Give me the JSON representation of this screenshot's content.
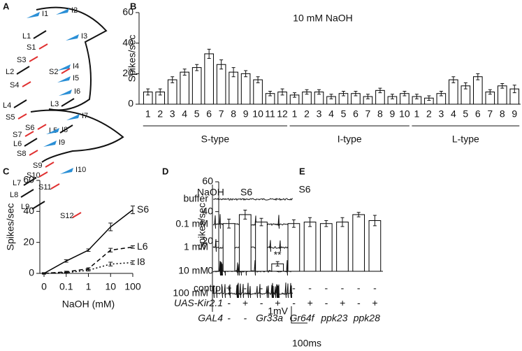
{
  "panel_labels": [
    "A",
    "B",
    "C",
    "D",
    "E"
  ],
  "diagram_a": {
    "labels": [
      "L1",
      "I1",
      "I2",
      "S1",
      "I3",
      "S3",
      "L2",
      "S2",
      "I4",
      "S4",
      "I5",
      "I6",
      "L4",
      "L3",
      "S5",
      "S6",
      "I7",
      "S7",
      "L5",
      "I8",
      "L6",
      "I9",
      "S8",
      "S9",
      "S10",
      "I10",
      "L7",
      "S11",
      "L8",
      "L9",
      "S12"
    ]
  },
  "traces_d": {
    "stimulus": "NaOH",
    "sensillum": "S6",
    "concentrations": [
      "buffer",
      "0.1 mM",
      "1 mM",
      "10 mM",
      "100 mM"
    ],
    "scale_voltage": "1mV",
    "scale_time": "100ms"
  },
  "chart_data": [
    {
      "type": "bar",
      "title": "10 mM NaOH",
      "y_label": "Spikes/sec",
      "ylim": [
        0,
        60
      ],
      "yticks": [
        0,
        20,
        40,
        60
      ],
      "bar_color": "#ffffff",
      "edge_color": "#000000",
      "groups": [
        {
          "name": "S-type",
          "categories": [
            "1",
            "2",
            "3",
            "4",
            "5",
            "6",
            "7",
            "8",
            "9",
            "10",
            "11",
            "12"
          ],
          "values": [
            8,
            8,
            16,
            21,
            24,
            33,
            26,
            21,
            20,
            16,
            7,
            8
          ],
          "errors": [
            2,
            2,
            2,
            2,
            2,
            3,
            3,
            3,
            2,
            2,
            1.5,
            2
          ]
        },
        {
          "name": "I-type",
          "categories": [
            "1",
            "2",
            "3",
            "4",
            "5",
            "6",
            "7",
            "8",
            "9",
            "10"
          ],
          "values": [
            6,
            8,
            8,
            5,
            7,
            7,
            5,
            9,
            5,
            7
          ],
          "errors": [
            1.5,
            1.5,
            1.5,
            1.5,
            1.5,
            1.5,
            1.5,
            1.5,
            1.5,
            1.5
          ]
        },
        {
          "name": "L-type",
          "categories": [
            "1",
            "2",
            "3",
            "4",
            "5",
            "6",
            "7",
            "8",
            "9"
          ],
          "values": [
            5,
            4,
            7,
            16,
            12,
            18,
            8,
            12,
            10
          ],
          "errors": [
            1.5,
            1.5,
            1.5,
            2,
            2,
            2,
            1.5,
            1.5,
            2.5
          ]
        }
      ]
    },
    {
      "type": "line",
      "y_label": "Spikes/sec",
      "x_label": "NaOH (mM)",
      "categories": [
        "0",
        "0.1",
        "1",
        "10",
        "100"
      ],
      "ylim": [
        0,
        60
      ],
      "yticks": [
        0,
        20,
        40,
        60
      ],
      "series": [
        {
          "name": "S6",
          "color": "#000000",
          "line_style": "solid",
          "values": [
            0,
            8,
            15,
            30,
            41
          ],
          "errors": [
            0.5,
            0.8,
            0.8,
            2.5,
            2.5
          ]
        },
        {
          "name": "L6",
          "color": "#000000",
          "line_style": "dashed",
          "values": [
            0,
            1,
            3,
            15,
            17
          ],
          "errors": [
            0.3,
            0.4,
            0.6,
            1.2,
            0.8
          ]
        },
        {
          "name": "I8",
          "color": "#000000",
          "line_style": "dotted",
          "values": [
            0,
            0.5,
            2,
            6,
            7
          ],
          "errors": [
            0.2,
            0.3,
            0.5,
            1.2,
            1.2
          ]
        }
      ]
    },
    {
      "type": "bar",
      "title": "S6",
      "y_label": "Spikes/sec",
      "ylim": [
        0,
        60
      ],
      "yticks": [
        0,
        20,
        40,
        60
      ],
      "bar_color": "#ffffff",
      "edge_color": "#000000",
      "values": [
        32,
        38,
        33,
        5,
        32,
        33,
        32,
        33,
        38,
        34
      ],
      "errors": [
        3,
        3,
        2.5,
        1.5,
        2.5,
        3,
        2,
        3,
        1.5,
        3.5
      ],
      "annotations": [
        {
          "index": 3,
          "text": "**"
        }
      ],
      "table": [
        {
          "label": "control",
          "italic": false,
          "cells": [
            "+",
            "-",
            "-",
            "-",
            "-",
            "-",
            "-",
            "-",
            "-",
            "-"
          ]
        },
        {
          "label": "UAS-Kir2.1",
          "italic": true,
          "cells": [
            "-",
            "+",
            "-",
            "+",
            "-",
            "+",
            "-",
            "+",
            "-",
            "+"
          ]
        },
        {
          "label": "GAL4",
          "italic": true,
          "cells": [
            "-",
            "-",
            "Gr33a",
            "Gr64f",
            "ppk23",
            "ppk28"
          ]
        }
      ]
    }
  ]
}
